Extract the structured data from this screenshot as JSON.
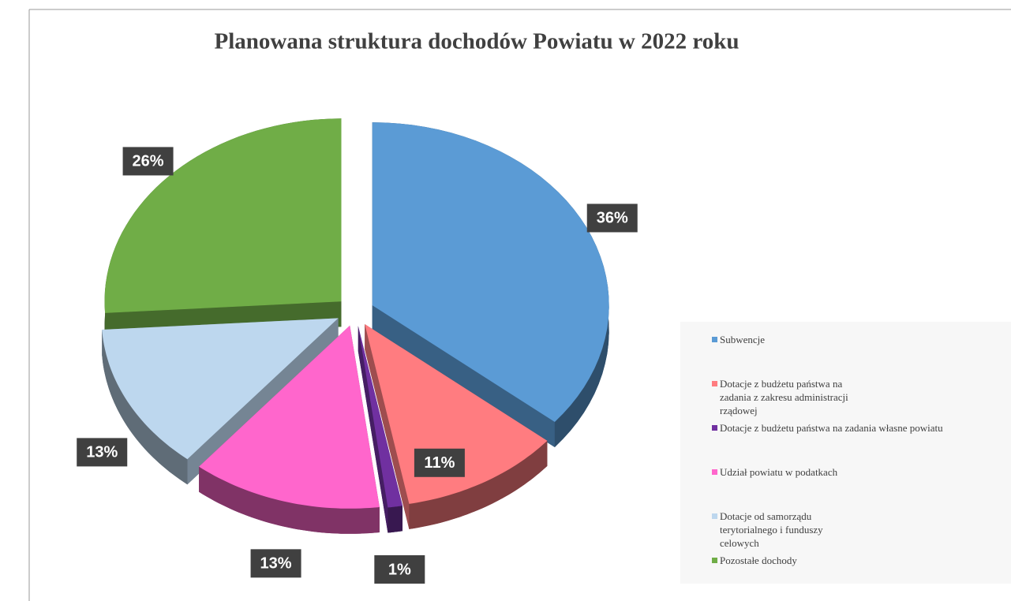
{
  "chart_data": {
    "type": "pie",
    "title": "Planowana struktura dochodów Powiatu w 2022 roku",
    "categories": [
      "Subwencje",
      "Dotacje z budżetu państwa na zadania z zakresu administracji rządowej",
      "Dotacje z budżetu państwa na zadania własne powiatu",
      "Udział powiatu w podatkach",
      "Dotacje od samorządu terytorialnego i funduszy celowych",
      "Pozostałe dochody"
    ],
    "values": [
      36,
      11,
      1,
      13,
      13,
      26
    ],
    "value_labels": [
      "36%",
      "11%",
      "1%",
      "13%",
      "13%",
      "26%"
    ],
    "colors": [
      "#5b9bd5",
      "#ff7c80",
      "#7030a0",
      "#ff66cc",
      "#bdd7ee",
      "#70ad47"
    ],
    "legend": "right"
  }
}
